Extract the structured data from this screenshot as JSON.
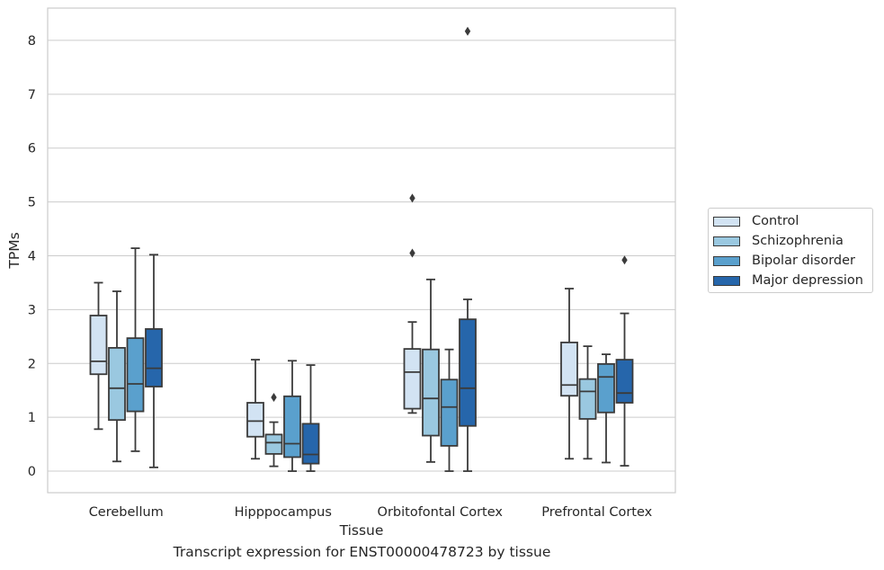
{
  "caption": "Transcript expression for ENST00000478723 by tissue",
  "chart_data": {
    "type": "box",
    "xlabel": "Tissue",
    "ylabel": "TPMs",
    "ylim": [
      -0.4,
      8.6
    ],
    "yticks": [
      0,
      1,
      2,
      3,
      4,
      5,
      6,
      7,
      8
    ],
    "grid": true,
    "legend_position": "right",
    "categories": [
      "Cerebellum",
      "Hipppocampus",
      "Orbitofontal Cortex",
      "Prefrontal Cortex"
    ],
    "series": [
      {
        "name": "Control",
        "color": "#d2e3f3",
        "boxes": [
          {
            "whisker_low": 0.78,
            "q1": 1.8,
            "median": 2.04,
            "q3": 2.89,
            "whisker_high": 3.5,
            "outliers": []
          },
          {
            "whisker_low": 0.23,
            "q1": 0.64,
            "median": 0.93,
            "q3": 1.27,
            "whisker_high": 2.07,
            "outliers": []
          },
          {
            "whisker_low": 1.08,
            "q1": 1.16,
            "median": 1.84,
            "q3": 2.27,
            "whisker_high": 2.77,
            "outliers": [
              4.05,
              5.07
            ]
          },
          {
            "whisker_low": 0.23,
            "q1": 1.4,
            "median": 1.6,
            "q3": 2.39,
            "whisker_high": 3.39,
            "outliers": []
          }
        ]
      },
      {
        "name": "Schizophrenia",
        "color": "#9ac8e0",
        "boxes": [
          {
            "whisker_low": 0.18,
            "q1": 0.95,
            "median": 1.54,
            "q3": 2.29,
            "whisker_high": 3.34,
            "outliers": []
          },
          {
            "whisker_low": 0.09,
            "q1": 0.32,
            "median": 0.53,
            "q3": 0.68,
            "whisker_high": 0.91,
            "outliers": [
              1.37
            ]
          },
          {
            "whisker_low": 0.17,
            "q1": 0.66,
            "median": 1.35,
            "q3": 2.26,
            "whisker_high": 3.56,
            "outliers": []
          },
          {
            "whisker_low": 0.23,
            "q1": 0.97,
            "median": 1.48,
            "q3": 1.71,
            "whisker_high": 2.32,
            "outliers": []
          }
        ]
      },
      {
        "name": "Bipolar disorder",
        "color": "#5aa0cd",
        "boxes": [
          {
            "whisker_low": 0.37,
            "q1": 1.11,
            "median": 1.62,
            "q3": 2.47,
            "whisker_high": 4.14,
            "outliers": []
          },
          {
            "whisker_low": 0.0,
            "q1": 0.26,
            "median": 0.51,
            "q3": 1.39,
            "whisker_high": 2.05,
            "outliers": []
          },
          {
            "whisker_low": 0.0,
            "q1": 0.47,
            "median": 1.19,
            "q3": 1.7,
            "whisker_high": 2.26,
            "outliers": []
          },
          {
            "whisker_low": 0.16,
            "q1": 1.09,
            "median": 1.75,
            "q3": 1.99,
            "whisker_high": 2.17,
            "outliers": []
          }
        ]
      },
      {
        "name": "Major depression",
        "color": "#2666ab",
        "boxes": [
          {
            "whisker_low": 0.07,
            "q1": 1.57,
            "median": 1.91,
            "q3": 2.64,
            "whisker_high": 4.02,
            "outliers": []
          },
          {
            "whisker_low": 0.0,
            "q1": 0.14,
            "median": 0.31,
            "q3": 0.88,
            "whisker_high": 1.97,
            "outliers": []
          },
          {
            "whisker_low": 0.0,
            "q1": 0.84,
            "median": 1.54,
            "q3": 2.82,
            "whisker_high": 3.19,
            "outliers": [
              8.17
            ]
          },
          {
            "whisker_low": 0.1,
            "q1": 1.27,
            "median": 1.45,
            "q3": 2.07,
            "whisker_high": 2.93,
            "outliers": [
              3.92
            ]
          }
        ]
      }
    ]
  }
}
